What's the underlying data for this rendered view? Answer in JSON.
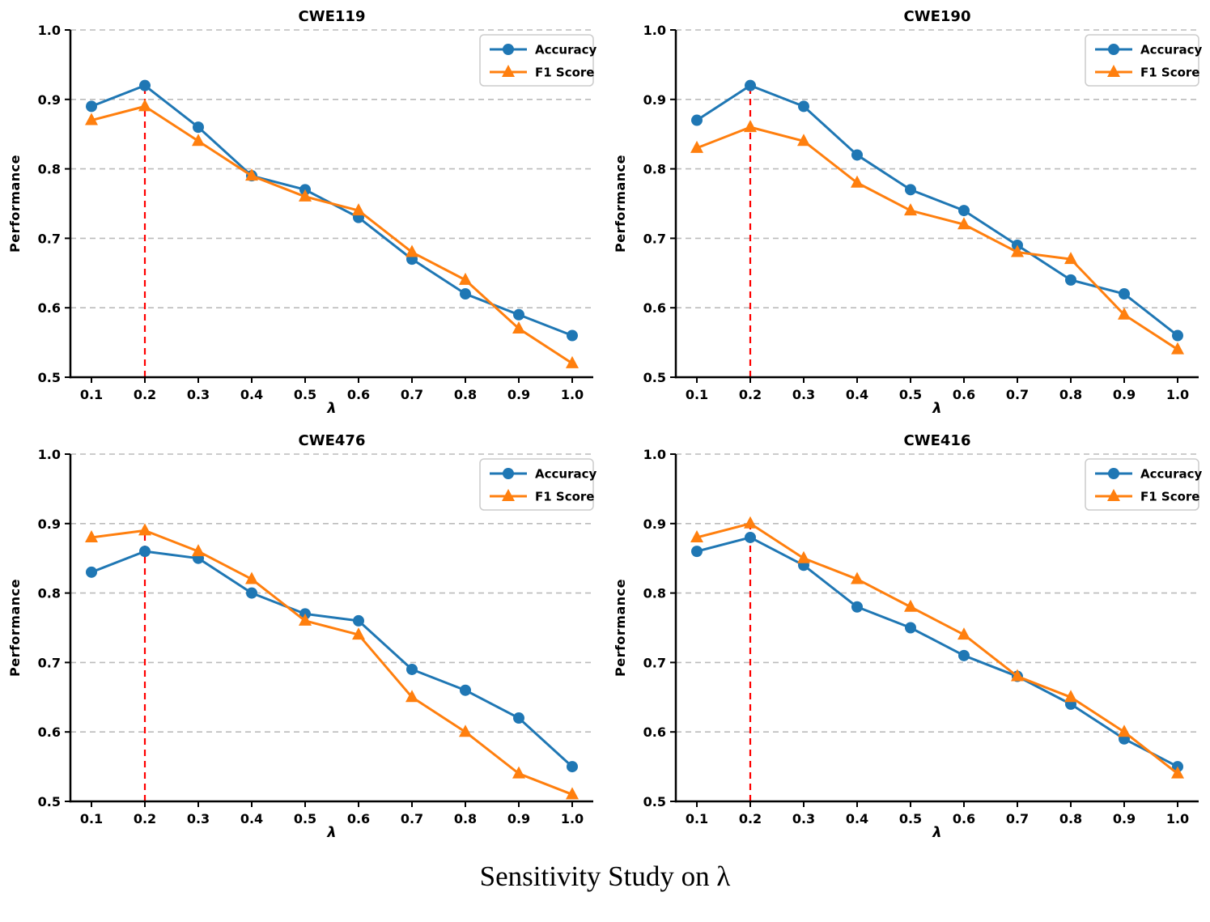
{
  "figure": {
    "suptitle": "Sensitivity Study on λ",
    "background": "#ffffff"
  },
  "colors": {
    "accuracy": "#1f77b4",
    "f1_score": "#ff7f0e",
    "highlight_line": "#ff0000",
    "highlight_tick": "#ff0000",
    "grid": "#bbbbbb",
    "axis": "#000000",
    "legend_border": "#cccccc",
    "legend_bg": "#ffffff"
  },
  "axes": {
    "xlabel": "λ",
    "ylabel": "Performance",
    "xticks": [
      "0.1",
      "0.2",
      "0.3",
      "0.4",
      "0.5",
      "0.6",
      "0.7",
      "0.8",
      "0.9",
      "1.0"
    ],
    "highlight_xtick": "0.2",
    "yticks": [
      "0.5",
      "0.6",
      "0.7",
      "0.8",
      "0.9",
      "1.0"
    ],
    "gridlines_at": [
      0.6,
      0.7,
      0.8,
      0.9,
      1.0
    ],
    "ylim": [
      0.5,
      1.0
    ],
    "xlim_data": [
      0.1,
      1.0
    ]
  },
  "legend": {
    "entries": [
      {
        "label": "Accuracy",
        "marker": "circle",
        "color": "#1f77b4"
      },
      {
        "label": "F1 Score",
        "marker": "triangle",
        "color": "#ff7f0e"
      }
    ],
    "position": "upper right"
  },
  "chart_data": [
    {
      "type": "line",
      "title": "CWE119",
      "xlabel": "λ",
      "ylabel": "Performance",
      "ylim": [
        0.5,
        1.0
      ],
      "grid": true,
      "x": [
        0.1,
        0.2,
        0.3,
        0.4,
        0.5,
        0.6,
        0.7,
        0.8,
        0.9,
        1.0
      ],
      "series": [
        {
          "name": "Accuracy",
          "marker": "circle",
          "color": "#1f77b4",
          "values": [
            0.89,
            0.92,
            0.86,
            0.79,
            0.77,
            0.73,
            0.67,
            0.62,
            0.59,
            0.56
          ]
        },
        {
          "name": "F1 Score",
          "marker": "triangle",
          "color": "#ff7f0e",
          "values": [
            0.87,
            0.89,
            0.84,
            0.79,
            0.76,
            0.74,
            0.68,
            0.64,
            0.57,
            0.52
          ]
        }
      ],
      "vline": {
        "x": 0.2,
        "from": 0.5,
        "to": 0.92,
        "style": "dashed",
        "color": "#ff0000"
      }
    },
    {
      "type": "line",
      "title": "CWE190",
      "xlabel": "λ",
      "ylabel": "Performance",
      "ylim": [
        0.5,
        1.0
      ],
      "grid": true,
      "x": [
        0.1,
        0.2,
        0.3,
        0.4,
        0.5,
        0.6,
        0.7,
        0.8,
        0.9,
        1.0
      ],
      "series": [
        {
          "name": "Accuracy",
          "marker": "circle",
          "color": "#1f77b4",
          "values": [
            0.87,
            0.92,
            0.89,
            0.82,
            0.77,
            0.74,
            0.69,
            0.64,
            0.62,
            0.56
          ]
        },
        {
          "name": "F1 Score",
          "marker": "triangle",
          "color": "#ff7f0e",
          "values": [
            0.83,
            0.86,
            0.84,
            0.78,
            0.74,
            0.72,
            0.68,
            0.67,
            0.59,
            0.54
          ]
        }
      ],
      "vline": {
        "x": 0.2,
        "from": 0.5,
        "to": 0.92,
        "style": "dashed",
        "color": "#ff0000"
      }
    },
    {
      "type": "line",
      "title": "CWE476",
      "xlabel": "λ",
      "ylabel": "Performance",
      "ylim": [
        0.5,
        1.0
      ],
      "grid": true,
      "x": [
        0.1,
        0.2,
        0.3,
        0.4,
        0.5,
        0.6,
        0.7,
        0.8,
        0.9,
        1.0
      ],
      "series": [
        {
          "name": "Accuracy",
          "marker": "circle",
          "color": "#1f77b4",
          "values": [
            0.83,
            0.86,
            0.85,
            0.8,
            0.77,
            0.76,
            0.69,
            0.66,
            0.62,
            0.55
          ]
        },
        {
          "name": "F1 Score",
          "marker": "triangle",
          "color": "#ff7f0e",
          "values": [
            0.88,
            0.89,
            0.86,
            0.82,
            0.76,
            0.74,
            0.65,
            0.6,
            0.54,
            0.51
          ]
        }
      ],
      "vline": {
        "x": 0.2,
        "from": 0.5,
        "to": 0.89,
        "style": "dashed",
        "color": "#ff0000"
      }
    },
    {
      "type": "line",
      "title": "CWE416",
      "xlabel": "λ",
      "ylabel": "Performance",
      "ylim": [
        0.5,
        1.0
      ],
      "grid": true,
      "x": [
        0.1,
        0.2,
        0.3,
        0.4,
        0.5,
        0.6,
        0.7,
        0.8,
        0.9,
        1.0
      ],
      "series": [
        {
          "name": "Accuracy",
          "marker": "circle",
          "color": "#1f77b4",
          "values": [
            0.86,
            0.88,
            0.84,
            0.78,
            0.75,
            0.71,
            0.68,
            0.64,
            0.59,
            0.55
          ]
        },
        {
          "name": "F1 Score",
          "marker": "triangle",
          "color": "#ff7f0e",
          "values": [
            0.88,
            0.9,
            0.85,
            0.82,
            0.78,
            0.74,
            0.68,
            0.65,
            0.6,
            0.54
          ]
        }
      ],
      "vline": {
        "x": 0.2,
        "from": 0.5,
        "to": 0.9,
        "style": "dashed",
        "color": "#ff0000"
      }
    }
  ]
}
